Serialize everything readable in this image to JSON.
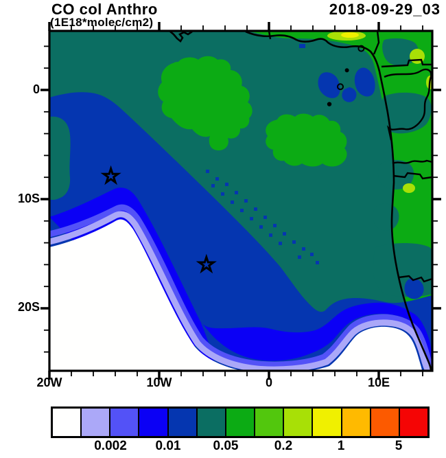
{
  "title": "CO col Anthro",
  "subtitle": "(1E18*molec/cm2)",
  "timestamp": "2018-09-29_03",
  "palette": {
    "white": "#fffffe",
    "lavender": "#aba8f8",
    "violet": "#5352f7",
    "bright_blue": "#0b00f5",
    "dark_blue": "#0536b0",
    "teal": "#0b6e62",
    "green": "#0cab14",
    "mid_green": "#52c70d",
    "yellow_green": "#a8e006",
    "yellow": "#f0f000",
    "amber": "#ffba00",
    "orange": "#fc5a00",
    "red": "#f50505",
    "line": "#000000"
  },
  "axes": {
    "x": {
      "major_ticks": [
        {
          "lon": -20,
          "label": "20W"
        },
        {
          "lon": -10,
          "label": "10W"
        },
        {
          "lon": 0,
          "label": "0"
        },
        {
          "lon": 10,
          "label": "10E"
        }
      ],
      "minor_step_deg": 2,
      "range_deg": [
        -20,
        14.9
      ]
    },
    "y": {
      "major_ticks": [
        {
          "lat": 0,
          "label": "0"
        },
        {
          "lat": -10,
          "label": "10S"
        },
        {
          "lat": -20,
          "label": "20S"
        }
      ],
      "minor_step_deg": 2,
      "range_deg": [
        5.4,
        -25.7
      ]
    }
  },
  "colorbar": {
    "cell_colors": [
      "#fffffe",
      "#aba8f8",
      "#5352f7",
      "#0b00f5",
      "#0536b0",
      "#0b6e62",
      "#0cab14",
      "#52c70d",
      "#a8e006",
      "#f0f000",
      "#ffba00",
      "#fc5a00",
      "#f50505"
    ],
    "tick_labels": [
      "0.002",
      "0.01",
      "0.05",
      "0.2",
      "1",
      "5"
    ],
    "levels": [
      0.001,
      0.002,
      0.005,
      0.01,
      0.02,
      0.05,
      0.1,
      0.2,
      0.5,
      1,
      2,
      5
    ]
  },
  "chart_data": {
    "type": "heatmap",
    "title": "CO col Anthro",
    "units": "1E18*molec/cm2",
    "timestamp": "2018-09-29_03",
    "lon_range_deg": [
      -20,
      14.9
    ],
    "lat_range_deg": [
      -25.7,
      5.4
    ],
    "contour_levels": [
      0.001,
      0.002,
      0.005,
      0.01,
      0.02,
      0.05,
      0.1,
      0.2,
      0.5,
      1,
      2,
      5
    ],
    "colorbar_tick_labels": [
      "0.002",
      "0.01",
      "0.05",
      "0.2",
      "1",
      "5"
    ],
    "markers": [
      {
        "shape": "open-star",
        "lon": -14.4,
        "lat": -7.9
      },
      {
        "shape": "open-star",
        "lon": -5.7,
        "lat": -16.0
      }
    ],
    "islands": [
      {
        "shape": "ring",
        "lon": 8.4,
        "lat": 3.8
      },
      {
        "shape": "ring",
        "lon": 6.5,
        "lat": 0.3
      },
      {
        "shape": "dot",
        "lon": 7.1,
        "lat": 1.8
      },
      {
        "shape": "dot",
        "lon": 5.5,
        "lat": -1.3
      }
    ],
    "regions": [
      {
        "value_range": "< 0.001",
        "color": "white",
        "where": "large ocean minimum in the southwest (~15W-5W, 14S-26S) and along the bottom edge; second minimum off Namibe coast (~9E-14E, 21S-26S)"
      },
      {
        "value_range": "0.001 - 0.005",
        "color": "lavender/violet fringes",
        "where": "thin bands rimming the white minima"
      },
      {
        "value_range": "0.005 - 0.02",
        "color": "blue band",
        "where": "broad arc from the west edge (0-8S) sweeping southeast across the ocean to the Angola/Namibia coast (~22S), covering the coastal strip at the bottom right"
      },
      {
        "value_range": "0.02 - 0.05",
        "color": "teal",
        "where": "background over most of the ocean, Gulf of Guinea, and inland patches of central Africa"
      },
      {
        "value_range": "0.05 - 0.1",
        "color": "green",
        "where": "ocean patches near 5W-1E, 0-6S and most land areas along the eastern edge"
      },
      {
        "value_range": "0.1 - 0.2",
        "color": "yellow-green spots",
        "where": "small spots over land near 11-14E (coastal Gabon/Congo/Angola) and along the Gulf coast"
      },
      {
        "value_range": "0.2 - 0.5",
        "color": "yellow",
        "where": "tiny maximum on the Gulf of Guinea coast near 7E"
      }
    ]
  }
}
